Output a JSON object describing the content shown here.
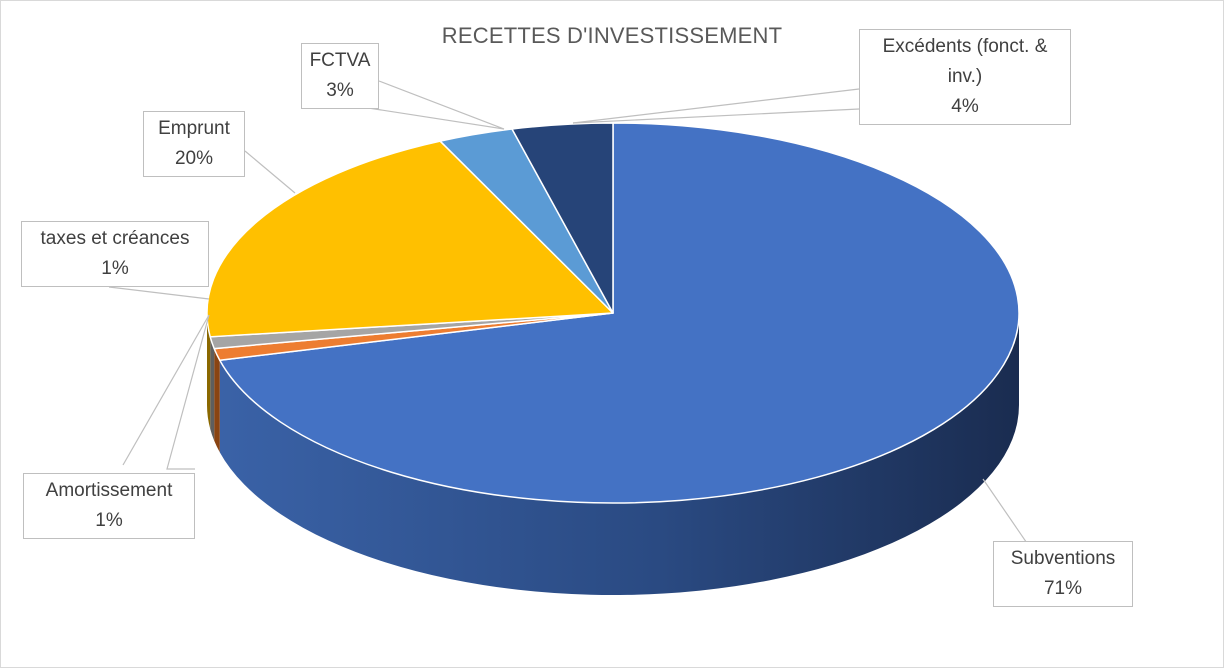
{
  "chart_data": {
    "type": "pie",
    "title": "RECETTES D'INVESTISSEMENT",
    "slices": [
      {
        "label": "Subventions",
        "value": 71,
        "display": "71%",
        "color": "#4472c4",
        "side": "#1f3560"
      },
      {
        "label": "Amortissement",
        "value": 1,
        "display": "1%",
        "color": "#ed7d31",
        "side": "#8a4412"
      },
      {
        "label": "taxes et créances",
        "value": 1,
        "display": "1%",
        "color": "#a5a5a5",
        "side": "#5e5e5e"
      },
      {
        "label": "Emprunt",
        "value": 20,
        "display": "20%",
        "color": "#ffc000",
        "side": "#8a6800"
      },
      {
        "label": "FCTVA",
        "value": 3,
        "display": "3%",
        "color": "#5b9bd5",
        "side": "#2e5b85"
      },
      {
        "label": "Excédents (fonct. & inv.)",
        "value": 4,
        "display": "4%",
        "color": "#264478",
        "side": "#13223c"
      }
    ],
    "style": "3d-pie",
    "legend": "none",
    "data_labels": "callouts"
  }
}
